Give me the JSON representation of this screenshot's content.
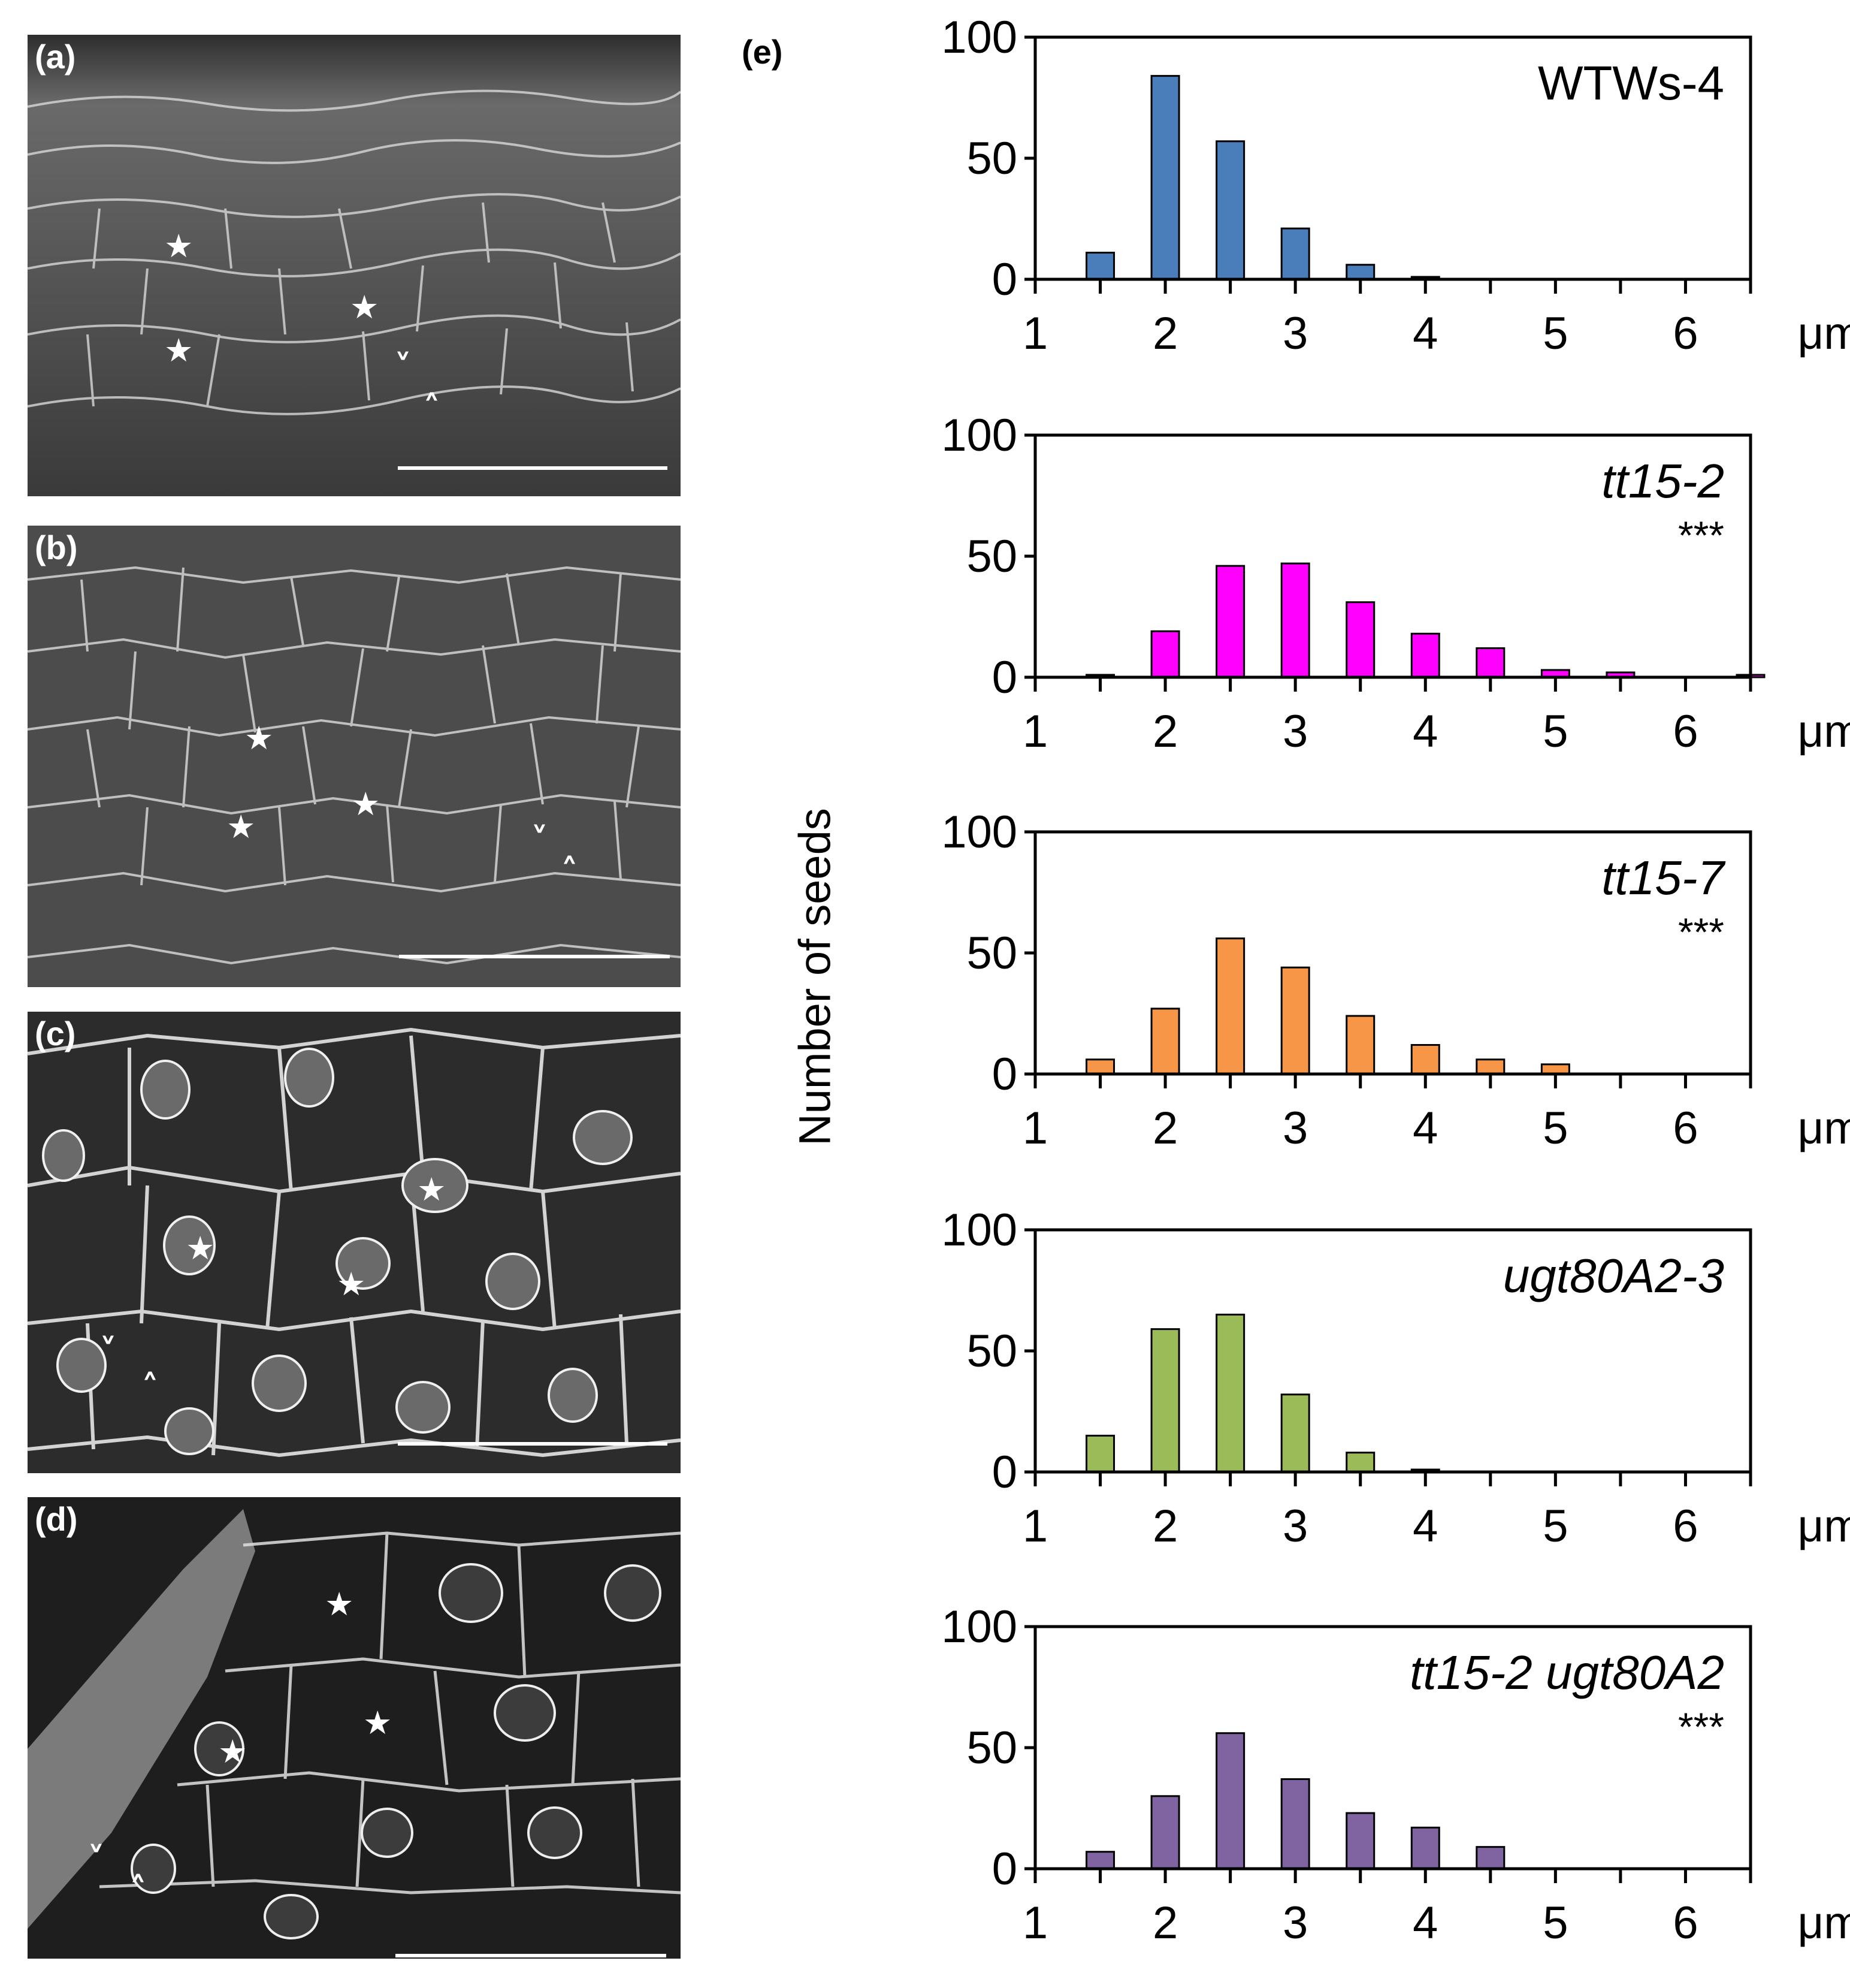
{
  "figure": {
    "panel_labels": [
      "(a)",
      "(b)",
      "(c)",
      "(d)"
    ],
    "chart_panel_label": "(e)",
    "y_axis_label": "Number of seeds",
    "x_unit": "μm",
    "star_glyph": "★",
    "arrow_glyph_1": "˅",
    "arrow_glyph_2": "˄"
  },
  "chart_data": [
    {
      "type": "bar",
      "title": "WTWs-4",
      "italic_title": false,
      "significance": "",
      "color": "#4a7ebb",
      "x": [
        1.5,
        2.0,
        2.5,
        3.0,
        3.5,
        4.0,
        4.5,
        5.0,
        5.5,
        6.0,
        6.5
      ],
      "values": [
        11,
        84,
        57,
        21,
        6,
        1,
        0,
        0,
        0,
        0,
        0
      ],
      "ylim": [
        0,
        100
      ],
      "yticks": [
        0,
        50,
        100
      ],
      "xlim": [
        1,
        6.5
      ],
      "xticks": [
        1,
        2,
        3,
        4,
        5,
        6
      ],
      "xlabel": "μm"
    },
    {
      "type": "bar",
      "title": "tt15-2",
      "italic_title": true,
      "significance": "***",
      "color": "#ff00ff",
      "x": [
        1.5,
        2.0,
        2.5,
        3.0,
        3.5,
        4.0,
        4.5,
        5.0,
        5.5,
        6.0,
        6.5
      ],
      "values": [
        1,
        19,
        46,
        47,
        31,
        18,
        12,
        3,
        2,
        0,
        1
      ],
      "ylim": [
        0,
        100
      ],
      "yticks": [
        0,
        50,
        100
      ],
      "xlim": [
        1,
        6.5
      ],
      "xticks": [
        1,
        2,
        3,
        4,
        5,
        6
      ],
      "xlabel": "μm"
    },
    {
      "type": "bar",
      "title": "tt15-7",
      "italic_title": true,
      "significance": "***",
      "color": "#f79646",
      "x": [
        1.5,
        2.0,
        2.5,
        3.0,
        3.5,
        4.0,
        4.5,
        5.0,
        5.5,
        6.0,
        6.5
      ],
      "values": [
        6,
        27,
        56,
        44,
        24,
        12,
        6,
        4,
        0,
        0,
        0
      ],
      "ylim": [
        0,
        100
      ],
      "yticks": [
        0,
        50,
        100
      ],
      "xlim": [
        1,
        6.5
      ],
      "xticks": [
        1,
        2,
        3,
        4,
        5,
        6
      ],
      "xlabel": "μm"
    },
    {
      "type": "bar",
      "title": "ugt80A2-3",
      "italic_title": true,
      "significance": "",
      "color": "#9bbb59",
      "x": [
        1.5,
        2.0,
        2.5,
        3.0,
        3.5,
        4.0,
        4.5,
        5.0,
        5.5,
        6.0,
        6.5
      ],
      "values": [
        15,
        59,
        65,
        32,
        8,
        1,
        0,
        0,
        0,
        0,
        0
      ],
      "ylim": [
        0,
        100
      ],
      "yticks": [
        0,
        50,
        100
      ],
      "xlim": [
        1,
        6.5
      ],
      "xticks": [
        1,
        2,
        3,
        4,
        5,
        6
      ],
      "xlabel": "μm"
    },
    {
      "type": "bar",
      "title": "tt15-2 ugt80A2",
      "italic_title": true,
      "significance": "***",
      "color": "#8064a2",
      "x": [
        1.5,
        2.0,
        2.5,
        3.0,
        3.5,
        4.0,
        4.5,
        5.0,
        5.5,
        6.0,
        6.5
      ],
      "values": [
        7,
        30,
        56,
        37,
        23,
        17,
        9,
        0,
        0,
        0,
        0
      ],
      "ylim": [
        0,
        100
      ],
      "yticks": [
        0,
        50,
        100
      ],
      "xlim": [
        1,
        6.5
      ],
      "xticks": [
        1,
        2,
        3,
        4,
        5,
        6
      ],
      "xlabel": "μm"
    }
  ]
}
